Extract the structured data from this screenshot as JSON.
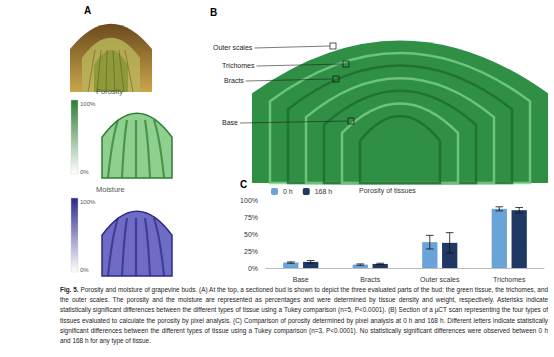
{
  "figure": {
    "panels": {
      "A": {
        "label": "A",
        "porosity_scale": {
          "title": "Porosity",
          "top_label": "100%",
          "bottom_label": "0%"
        },
        "moisture_scale": {
          "title": "Moisture",
          "top_label": "100%",
          "bottom_label": "0%"
        }
      },
      "B": {
        "label": "B",
        "annotations": [
          "Outer scales",
          "Trichomes",
          "Bracts",
          "Base"
        ]
      },
      "C": {
        "label": "C"
      }
    },
    "caption": {
      "label": "Fig. 5.",
      "text": "Porosity and moisture of grapevine buds. (A) At the top, a sectioned bud is shown to depict the three evaluated parts of the bud: the green tissue, the trichomes, and the outer scales. The porosity and the moisture are represented as percentages and were determined by tissue density and weight, respectively. Asterisks indicate statistically significant differences between the different types of tissue using a Tukey comparison (n=5, P<0.0001). (B) Section of a µCT scan representing the four types of tissues evaluated to calculate the porosity by pixel analysis. (C) Comparison of porosity determined by pixel analysis at 0 h and 168 h. Different letters indicate statistically significant differences between the different types of tissue using a Tukey comparison (n=3, P<0.0001). No statistically significant differences were observed between 0 h and 168 h for any type of tissue."
    }
  },
  "chart_data": {
    "type": "bar",
    "title": "Porosity of tissues",
    "categories": [
      "Base",
      "Bracts",
      "Outer scales",
      "Trichomes"
    ],
    "series": [
      {
        "name": "0 h",
        "color": "#6aa3d8",
        "values": [
          8,
          5,
          38,
          87
        ],
        "errors": [
          1,
          1,
          10,
          3
        ]
      },
      {
        "name": "168 h",
        "color": "#1f3864",
        "values": [
          9,
          6,
          37,
          85
        ],
        "errors": [
          2,
          1,
          15,
          4
        ]
      }
    ],
    "ylim": [
      0,
      100
    ],
    "yticks": [
      {
        "value": 0,
        "label": "0%"
      },
      {
        "value": 25,
        "label": "25%"
      },
      {
        "value": 50,
        "label": "50%"
      },
      {
        "value": 75,
        "label": "75%"
      },
      {
        "value": 100,
        "label": "100%"
      }
    ],
    "grid": false,
    "legend": "top",
    "data_labels": false
  }
}
